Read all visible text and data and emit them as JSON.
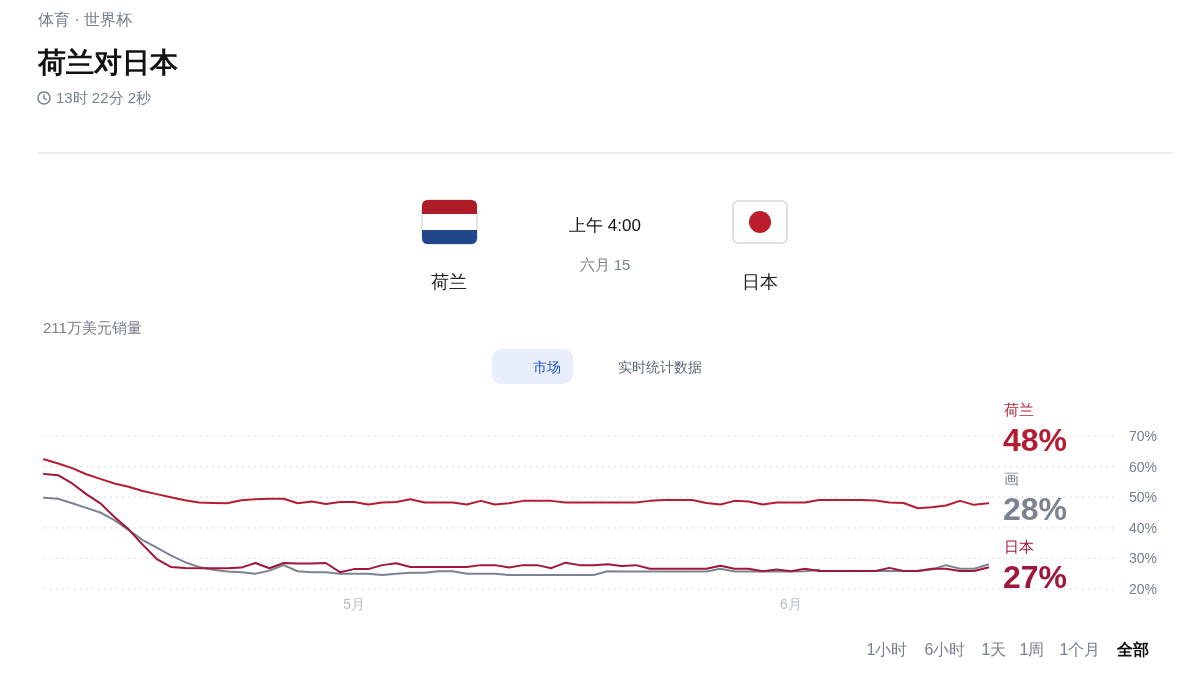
{
  "chart_data": {
    "type": "line",
    "title": "荷兰对日本",
    "subtitle": "体育 · 世界杯",
    "annotations": [
      "13时 22分 2秒",
      "上午 4:00",
      "六月 15",
      "荷兰",
      "日本",
      "211万美元销量",
      "市场",
      "实时统计数据",
      "1小时",
      "6小时",
      "1天",
      "1周",
      "1个月",
      "全部"
    ],
    "x": [
      "--04-09",
      "--04-10",
      "--04-11",
      "--04-12",
      "--04-13",
      "--04-14",
      "--04-15",
      "--04-16",
      "--04-17",
      "--04-18",
      "--04-19",
      "--04-20",
      "--04-21",
      "--04-22",
      "--04-23",
      "--04-24",
      "--04-25",
      "--04-26",
      "--04-27",
      "--04-28",
      "--04-29",
      "--04-30",
      "--05-01",
      "--05-02",
      "--05-03",
      "--05-04",
      "--05-05",
      "--05-06",
      "--05-07",
      "--05-08",
      "--05-09",
      "--05-10",
      "--05-11",
      "--05-12",
      "--05-13",
      "--05-14",
      "--05-15",
      "--05-16",
      "--05-17",
      "--05-18",
      "--05-19",
      "--05-20",
      "--05-21",
      "--05-22",
      "--05-23",
      "--05-24",
      "--05-25",
      "--05-26",
      "--05-27",
      "--05-28",
      "--05-29",
      "--05-30",
      "--05-31",
      "--06-01",
      "--06-02",
      "--06-03",
      "--06-04",
      "--06-05",
      "--06-06",
      "--06-07",
      "--06-08",
      "--06-09",
      "--06-10",
      "--06-11",
      "--06-12",
      "--06-13",
      "--06-14",
      "--06-15"
    ],
    "xlim": [
      "--04-09",
      "--06-24"
    ],
    "xticks": [
      {
        "value": "--05-01",
        "label": "5月"
      },
      {
        "value": "--06-01",
        "label": "6月"
      }
    ],
    "ylim": [
      20,
      70
    ],
    "yticks": [
      {
        "value": 20,
        "label": "20%"
      },
      {
        "value": 30,
        "label": "30%"
      },
      {
        "value": 40,
        "label": "40%"
      },
      {
        "value": 50,
        "label": "50%"
      },
      {
        "value": 60,
        "label": "60%"
      },
      {
        "value": 70,
        "label": "70%"
      }
    ],
    "grid": "y",
    "series": [
      {
        "name": "荷兰",
        "color": "#b51c33",
        "values": [
          62.4,
          61,
          59.5,
          57.5,
          56,
          54.5,
          53.4,
          52,
          51,
          50,
          49,
          48.3,
          48.1,
          48,
          49,
          49.3,
          49.5,
          49.5,
          48,
          48.6,
          47.8,
          48.4,
          48.4,
          47.6,
          48.3,
          48.4,
          49.3,
          48.3,
          48.3,
          48.3,
          47.6,
          48.8,
          47.6,
          48,
          48.8,
          48.8,
          48.8,
          48.3,
          48.3,
          48.3,
          48.3,
          48.3,
          48.3,
          48.8,
          49.1,
          49.1,
          49.1,
          48.1,
          47.6,
          48.8,
          48.6,
          47.6,
          48.3,
          48.3,
          48.3,
          49.1,
          49.1,
          49.1,
          49.1,
          48.9,
          48.3,
          48.1,
          46.4,
          46.7,
          47.3,
          48.8,
          47.5,
          48
        ],
        "value_labels": [
          null,
          null,
          null,
          null,
          null,
          null,
          null,
          null,
          null,
          null,
          null,
          null,
          null,
          null,
          null,
          null,
          null,
          null,
          null,
          null,
          null,
          null,
          null,
          null,
          null,
          null,
          null,
          null,
          null,
          null,
          null,
          null,
          null,
          null,
          null,
          null,
          null,
          null,
          null,
          null,
          null,
          null,
          null,
          null,
          null,
          null,
          null,
          null,
          null,
          null,
          null,
          null,
          null,
          null,
          null,
          null,
          null,
          null,
          null,
          null,
          null,
          null,
          null,
          null,
          null,
          null,
          null,
          "48%"
        ]
      },
      {
        "name": "画",
        "color": "#7b8391",
        "values": [
          49.8,
          49.5,
          48,
          46.5,
          45,
          42.5,
          39.3,
          36,
          33.5,
          31,
          28.8,
          27.2,
          26.3,
          25.7,
          25.5,
          25,
          26,
          27.8,
          25.8,
          25.5,
          25.5,
          25,
          25,
          25,
          24.6,
          25,
          25.3,
          25.3,
          25.8,
          25.8,
          25,
          25,
          25,
          24.6,
          24.6,
          24.6,
          24.6,
          24.6,
          24.6,
          24.6,
          25.8,
          25.7,
          25.7,
          25.7,
          25.7,
          25.7,
          25.7,
          25.7,
          26.6,
          25.7,
          25.7,
          25.7,
          25.7,
          25.7,
          25.8,
          26.3,
          null,
          null,
          null,
          25.9,
          25.9,
          25.9,
          25.9,
          26.4,
          27.8,
          26.6,
          26.6,
          28
        ],
        "value_labels": [
          null,
          null,
          null,
          null,
          null,
          null,
          null,
          null,
          null,
          null,
          null,
          null,
          null,
          null,
          null,
          null,
          null,
          null,
          null,
          null,
          null,
          null,
          null,
          null,
          null,
          null,
          null,
          null,
          null,
          null,
          null,
          null,
          null,
          null,
          null,
          null,
          null,
          null,
          null,
          null,
          null,
          null,
          null,
          null,
          null,
          null,
          null,
          null,
          null,
          null,
          null,
          null,
          null,
          null,
          null,
          null,
          null,
          null,
          null,
          null,
          null,
          null,
          null,
          null,
          null,
          null,
          null,
          "28%"
        ]
      },
      {
        "name": "日本",
        "color": "#a0173a",
        "values": [
          57.6,
          57.2,
          54.5,
          51,
          48,
          43.5,
          39.5,
          34.5,
          29.8,
          27.2,
          26.9,
          26.8,
          26.8,
          26.8,
          27,
          28.5,
          26.8,
          28.5,
          28.3,
          28.3,
          28.5,
          25.5,
          26.5,
          26.5,
          27.8,
          28.4,
          27.2,
          27.2,
          27.2,
          27.2,
          27.2,
          27.8,
          27.8,
          27,
          27.8,
          27.8,
          26.8,
          28.6,
          27.8,
          27.8,
          28.1,
          27.5,
          27.8,
          26.6,
          26.6,
          26.6,
          26.6,
          26.6,
          27.6,
          26.6,
          26.6,
          25.8,
          26.4,
          25.8,
          26.6,
          25.9,
          25.9,
          25.9,
          25.9,
          25.9,
          26.9,
          25.9,
          25.9,
          26.6,
          26.6,
          25.9,
          25.9,
          27
        ],
        "value_labels": [
          null,
          null,
          null,
          null,
          null,
          null,
          null,
          null,
          null,
          null,
          null,
          null,
          null,
          null,
          null,
          null,
          null,
          null,
          null,
          null,
          null,
          null,
          null,
          null,
          null,
          null,
          null,
          null,
          null,
          null,
          null,
          null,
          null,
          null,
          null,
          null,
          null,
          null,
          null,
          null,
          null,
          null,
          null,
          null,
          null,
          null,
          null,
          null,
          null,
          null,
          null,
          null,
          null,
          null,
          null,
          null,
          null,
          null,
          null,
          null,
          null,
          null,
          null,
          null,
          null,
          null,
          null,
          "27%"
        ]
      }
    ]
  }
}
